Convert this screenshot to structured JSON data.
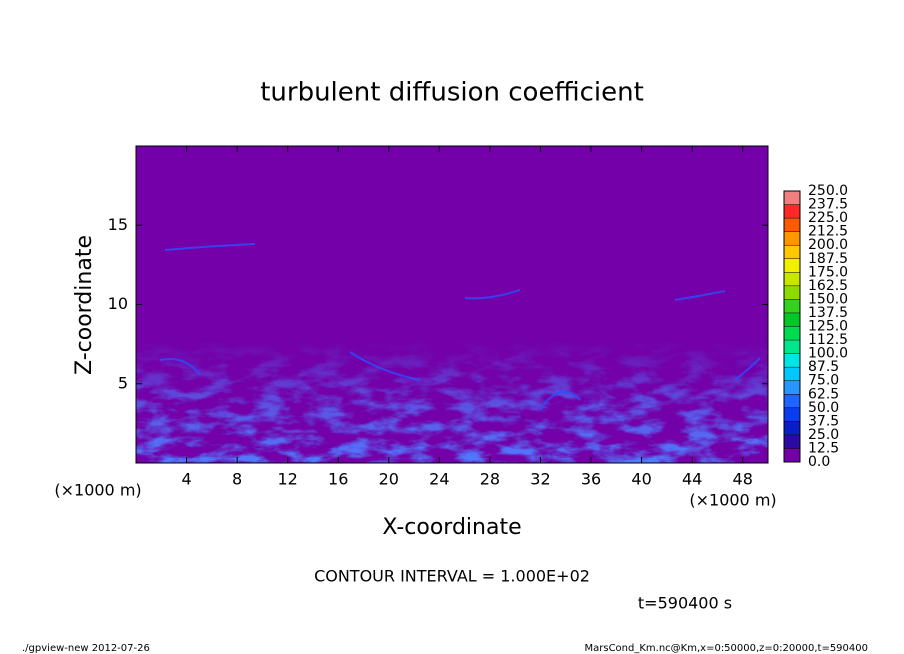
{
  "chart_data": {
    "type": "contour",
    "title": "turbulent diffusion coefficient",
    "xlabel": "X-coordinate",
    "ylabel": "Z-coordinate",
    "x_scale_label": "(×1000 m)",
    "xlim": [
      0,
      50
    ],
    "ylim": [
      0,
      20
    ],
    "xticks": [
      4,
      8,
      12,
      16,
      20,
      24,
      28,
      32,
      36,
      40,
      44,
      48
    ],
    "yticks": [
      5,
      10,
      15
    ],
    "field_color": "#7300a8",
    "colorbar_ticks": [
      {
        "value": 0,
        "label": "0.0"
      },
      {
        "value": 12.5,
        "label": "12.5"
      },
      {
        "value": 25,
        "label": "25.0"
      },
      {
        "value": 37.5,
        "label": "37.5"
      },
      {
        "value": 50,
        "label": "50.0"
      },
      {
        "value": 62.5,
        "label": "62.5"
      },
      {
        "value": 75,
        "label": "75.0"
      },
      {
        "value": 87.5,
        "label": "87.5"
      },
      {
        "value": 100,
        "label": "100.0"
      },
      {
        "value": 112.5,
        "label": "112.5"
      },
      {
        "value": 125,
        "label": "125.0"
      },
      {
        "value": 137.5,
        "label": "137.5"
      },
      {
        "value": 150,
        "label": "150.0"
      },
      {
        "value": 162.5,
        "label": "162.5"
      },
      {
        "value": 175,
        "label": "175.0"
      },
      {
        "value": 187.5,
        "label": "187.5"
      },
      {
        "value": 200,
        "label": "200.0"
      },
      {
        "value": 212.5,
        "label": "212.5"
      },
      {
        "value": 225,
        "label": "225.0"
      },
      {
        "value": 237.5,
        "label": "237.5"
      },
      {
        "value": 250,
        "label": "250.0"
      }
    ],
    "colorbar_colors": [
      "#7300a8",
      "#2a0aa0",
      "#0a1ec8",
      "#0a3cf0",
      "#1e64ff",
      "#2896ff",
      "#00c8ff",
      "#00e6e6",
      "#00e68c",
      "#00dc50",
      "#00c828",
      "#32d21e",
      "#8cdc00",
      "#c8e600",
      "#f0f000",
      "#ffc800",
      "#ff9600",
      "#ff5a00",
      "#ff2828",
      "#f08080"
    ],
    "annotation": "CONTOUR INTERVAL = 1.000E+02",
    "time_label": "t=590400 s",
    "footer_left": "./gpview-new  2012-07-26",
    "footer_right": "MarsCond_Km.nc@Km,x=0:50000,z=0:20000,t=590400"
  }
}
